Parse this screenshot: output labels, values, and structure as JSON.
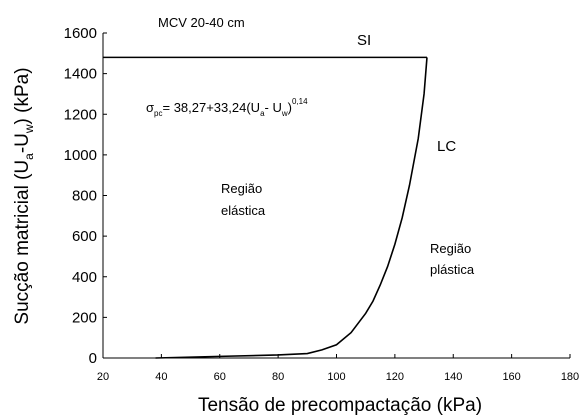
{
  "chart_data": {
    "type": "line",
    "xlabel": "Tensão de precompactação (kPa)",
    "ylabel": [
      "Sucção matricial (U",
      "a",
      "-U",
      "w",
      ") (kPa)"
    ],
    "annotations": {
      "top": "MCV  20-40 cm",
      "elastic": [
        "Região",
        "elástica"
      ],
      "plastic": [
        "Região",
        "plástica"
      ],
      "equation": [
        "σ",
        "pc",
        "= 38,27+33,24(U",
        "a",
        "- U",
        "w",
        ")",
        "0,14"
      ]
    },
    "series": [
      {
        "name": "SI",
        "color": "#000000",
        "x": [
          20,
          131
        ],
        "values": [
          1480,
          1480
        ]
      },
      {
        "name": "LC",
        "color": "#000000",
        "x": [
          38,
          60,
          80,
          90,
          95,
          100,
          105,
          110,
          112.5,
          115,
          117.5,
          120,
          122.5,
          125,
          128,
          130,
          131
        ],
        "values": [
          0,
          8,
          15,
          22,
          40,
          65,
          125,
          220,
          280,
          360,
          450,
          560,
          690,
          850,
          1080,
          1300,
          1480
        ]
      }
    ],
    "xlim": [
      20,
      180
    ],
    "xticks": [
      20,
      40,
      60,
      80,
      100,
      120,
      140,
      160,
      180
    ],
    "ylim": [
      0,
      1600
    ],
    "yticks": [
      0,
      200,
      400,
      600,
      800,
      1000,
      1200,
      1400,
      1600
    ]
  }
}
